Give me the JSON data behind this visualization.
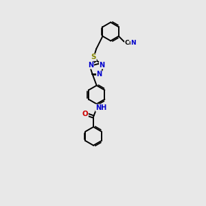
{
  "bg_color": "#e8e8e8",
  "bond_color": "#000000",
  "N_color": "#0000cc",
  "O_color": "#cc0000",
  "S_color": "#888800",
  "line_width": 1.4,
  "fig_width": 3.0,
  "fig_height": 3.0,
  "xlim": [
    -0.3,
    1.1
  ],
  "ylim": [
    -1.6,
    1.6
  ]
}
